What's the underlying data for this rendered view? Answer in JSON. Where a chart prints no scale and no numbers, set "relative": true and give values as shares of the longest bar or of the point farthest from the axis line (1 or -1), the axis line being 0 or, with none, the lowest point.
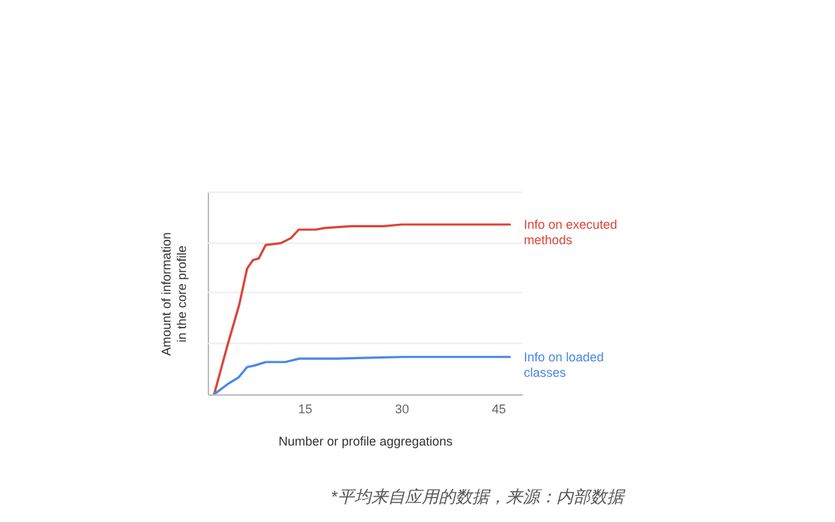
{
  "chart_data": {
    "type": "line",
    "relative": true,
    "xlabel": "Number or profile aggregations",
    "ylabel": "Amount of information in the core profile",
    "xlim": [
      0,
      48.7
    ],
    "xticks": [
      15,
      30,
      45
    ],
    "ref_lines": [
      {
        "axis": "y",
        "value": 0.3,
        "color": "#eeeeee"
      },
      {
        "axis": "y",
        "value": 0.6,
        "color": "#eeeeee"
      },
      {
        "axis": "y",
        "value": 0.89,
        "color": "#eeeeee"
      },
      {
        "axis": "y",
        "value": 1.19,
        "color": "#eeeeee"
      }
    ],
    "annotations": [
      "*平均来自应用的数据，来源：内部数据"
    ],
    "series": [
      {
        "name": "Info on executed methods",
        "color": "#db4437",
        "x": [
          1.0,
          3.0,
          4.9,
          6.1,
          7.0,
          7.9,
          9.0,
          11.3,
          12.9,
          14.1,
          16.7,
          18.2,
          22.2,
          27.2,
          30.1,
          46.8
        ],
        "values": [
          0,
          0.28,
          0.53,
          0.74,
          0.79,
          0.8,
          0.88,
          0.89,
          0.92,
          0.97,
          0.97,
          0.98,
          0.99,
          0.99,
          1.0,
          1.0
        ]
      },
      {
        "name": "Info on loaded classes",
        "color": "#4a86e8",
        "x": [
          1.0,
          3.1,
          4.8,
          6.1,
          7.3,
          9.0,
          12.0,
          14.2,
          20.0,
          30.1,
          46.8
        ],
        "values": [
          0,
          0.06,
          0.1,
          0.16,
          0.17,
          0.19,
          0.19,
          0.21,
          0.21,
          0.22,
          0.22
        ]
      }
    ]
  }
}
